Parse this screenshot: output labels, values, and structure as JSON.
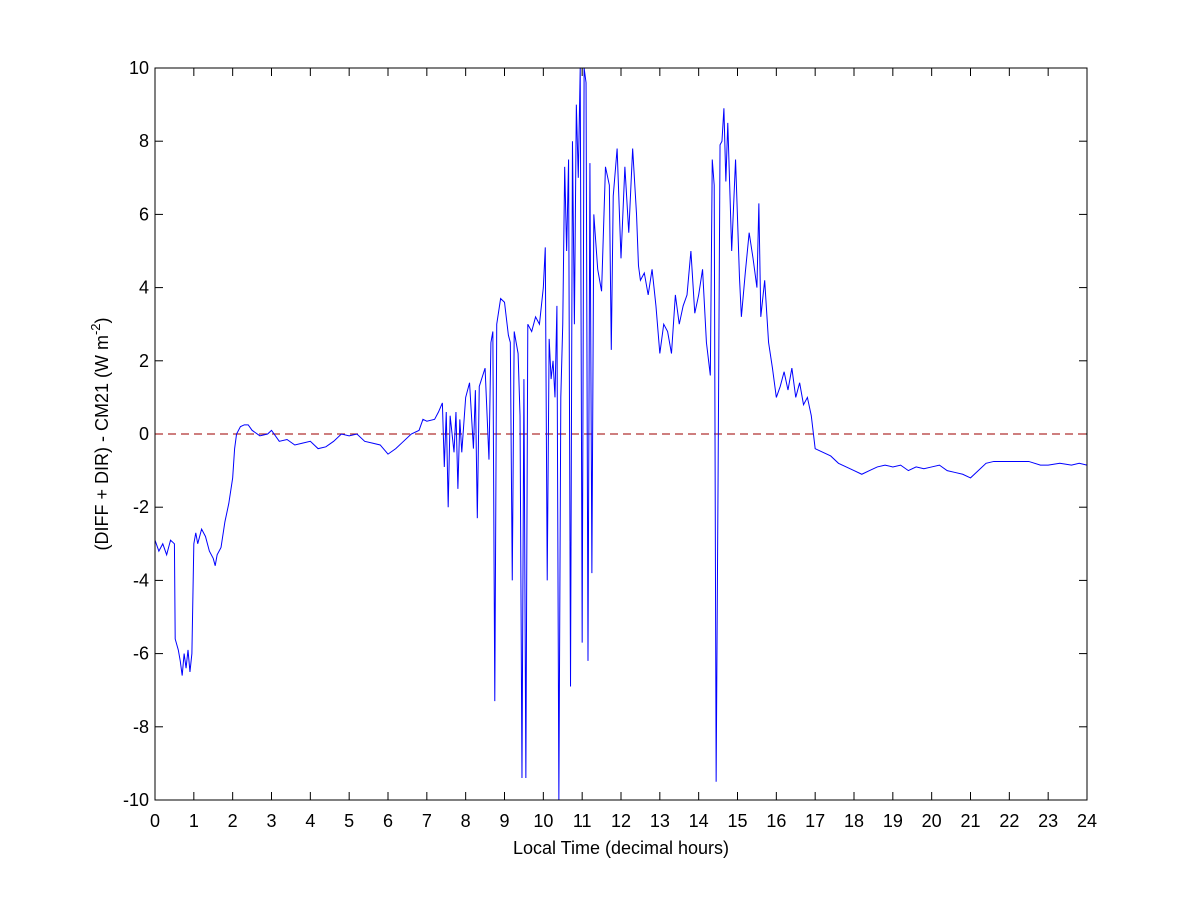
{
  "chart_data": {
    "type": "line",
    "xlabel": "Local Time (decimal hours)",
    "ylabel": {
      "text": "(DIFF + DIR) - CM21 (W m",
      "superscript": "-2",
      "suffix": ")"
    },
    "xlim": [
      0,
      24
    ],
    "xticks": [
      0,
      1,
      2,
      3,
      4,
      5,
      6,
      7,
      8,
      9,
      10,
      11,
      12,
      13,
      14,
      15,
      16,
      17,
      18,
      19,
      20,
      21,
      22,
      23,
      24
    ],
    "ylim": [
      -10,
      10
    ],
    "yticks": [
      -10,
      -8,
      -6,
      -4,
      -2,
      0,
      2,
      4,
      6,
      8,
      10
    ],
    "reference_line": {
      "value": 0,
      "color": "#b03030",
      "style": "dashed"
    },
    "series": [
      {
        "color": "#0000ff",
        "x": [
          0,
          0.1,
          0.2,
          0.3,
          0.4,
          0.5,
          0.52,
          0.6,
          0.65,
          0.7,
          0.75,
          0.8,
          0.85,
          0.9,
          0.95,
          1.0,
          1.05,
          1.1,
          1.2,
          1.3,
          1.4,
          1.5,
          1.55,
          1.6,
          1.7,
          1.8,
          1.9,
          2.0,
          2.05,
          2.1,
          2.2,
          2.3,
          2.4,
          2.5,
          2.7,
          2.9,
          3.0,
          3.2,
          3.4,
          3.6,
          3.8,
          4.0,
          4.2,
          4.4,
          4.6,
          4.8,
          5.0,
          5.2,
          5.4,
          5.6,
          5.8,
          6.0,
          6.2,
          6.4,
          6.6,
          6.8,
          6.9,
          7.0,
          7.2,
          7.3,
          7.4,
          7.45,
          7.5,
          7.55,
          7.6,
          7.7,
          7.75,
          7.8,
          7.85,
          7.9,
          8.0,
          8.1,
          8.2,
          8.25,
          8.3,
          8.35,
          8.5,
          8.6,
          8.65,
          8.7,
          8.75,
          8.8,
          8.9,
          9.0,
          9.1,
          9.15,
          9.2,
          9.25,
          9.35,
          9.4,
          9.45,
          9.5,
          9.55,
          9.6,
          9.7,
          9.8,
          9.9,
          10.0,
          10.05,
          10.1,
          10.15,
          10.2,
          10.25,
          10.3,
          10.35,
          10.4,
          10.45,
          10.5,
          10.55,
          10.6,
          10.65,
          10.7,
          10.75,
          10.8,
          10.85,
          10.9,
          10.95,
          11.0,
          11.05,
          11.1,
          11.15,
          11.2,
          11.25,
          11.3,
          11.4,
          11.5,
          11.6,
          11.7,
          11.75,
          11.8,
          11.9,
          12.0,
          12.1,
          12.2,
          12.3,
          12.4,
          12.45,
          12.5,
          12.6,
          12.7,
          12.8,
          12.9,
          13.0,
          13.1,
          13.2,
          13.3,
          13.4,
          13.5,
          13.6,
          13.7,
          13.8,
          13.9,
          14.0,
          14.1,
          14.2,
          14.3,
          14.35,
          14.4,
          14.45,
          14.5,
          14.55,
          14.6,
          14.65,
          14.7,
          14.75,
          14.85,
          14.95,
          15.05,
          15.1,
          15.2,
          15.3,
          15.4,
          15.5,
          15.55,
          15.6,
          15.7,
          15.8,
          15.9,
          16.0,
          16.1,
          16.2,
          16.3,
          16.4,
          16.5,
          16.6,
          16.7,
          16.8,
          16.9,
          17.0,
          17.2,
          17.4,
          17.6,
          17.8,
          18.0,
          18.2,
          18.4,
          18.6,
          18.8,
          19.0,
          19.2,
          19.4,
          19.6,
          19.8,
          20.0,
          20.2,
          20.4,
          20.6,
          20.8,
          21.0,
          21.2,
          21.4,
          21.6,
          21.8,
          22.0,
          22.5,
          22.8,
          23.0,
          23.3,
          23.6,
          23.8,
          24.0
        ],
        "values": [
          -2.9,
          -3.2,
          -3.0,
          -3.3,
          -2.9,
          -3.0,
          -5.6,
          -5.9,
          -6.2,
          -6.6,
          -6.0,
          -6.4,
          -5.9,
          -6.5,
          -6.0,
          -3.0,
          -2.7,
          -3.0,
          -2.6,
          -2.8,
          -3.2,
          -3.4,
          -3.6,
          -3.3,
          -3.1,
          -2.4,
          -1.9,
          -1.2,
          -0.4,
          0.0,
          0.2,
          0.25,
          0.25,
          0.1,
          -0.05,
          0.0,
          0.1,
          -0.2,
          -0.15,
          -0.3,
          -0.25,
          -0.2,
          -0.4,
          -0.35,
          -0.2,
          0.0,
          -0.05,
          0.0,
          -0.2,
          -0.25,
          -0.3,
          -0.55,
          -0.4,
          -0.2,
          0.0,
          0.1,
          0.4,
          0.35,
          0.4,
          0.6,
          0.85,
          -0.9,
          0.6,
          -2.0,
          0.5,
          -0.5,
          0.6,
          -1.5,
          0.4,
          -0.5,
          1.0,
          1.4,
          -0.4,
          1.2,
          -2.3,
          1.3,
          1.8,
          -0.7,
          2.5,
          2.8,
          -7.3,
          3.0,
          3.7,
          3.6,
          2.7,
          2.5,
          -4.0,
          2.8,
          2.2,
          0.5,
          -9.4,
          1.5,
          -9.4,
          3.0,
          2.8,
          3.2,
          3.0,
          4.0,
          5.1,
          -4.0,
          2.6,
          1.5,
          2.0,
          1.0,
          3.5,
          -10,
          1.0,
          3.0,
          7.3,
          5.0,
          7.5,
          -6.9,
          8.0,
          3.0,
          9.0,
          7.0,
          10,
          -5.7,
          10,
          9.6,
          -6.2,
          7.4,
          -3.8,
          6.0,
          4.5,
          3.9,
          7.3,
          6.8,
          2.3,
          6.5,
          7.8,
          4.8,
          7.3,
          5.5,
          7.8,
          6.0,
          4.6,
          4.2,
          4.4,
          3.8,
          4.5,
          3.5,
          2.2,
          3.0,
          2.8,
          2.2,
          3.8,
          3.0,
          3.5,
          3.8,
          5.0,
          3.3,
          3.8,
          4.5,
          2.5,
          1.6,
          7.5,
          6.8,
          -9.5,
          -1.2,
          7.9,
          8.0,
          8.9,
          6.9,
          8.5,
          5.0,
          7.5,
          4.3,
          3.2,
          4.4,
          5.5,
          4.8,
          4.0,
          6.3,
          3.2,
          4.2,
          2.5,
          1.8,
          1.0,
          1.3,
          1.7,
          1.2,
          1.8,
          1.0,
          1.4,
          0.8,
          1.0,
          0.5,
          -0.4,
          -0.5,
          -0.6,
          -0.8,
          -0.9,
          -1.0,
          -1.1,
          -1.0,
          -0.9,
          -0.85,
          -0.9,
          -0.85,
          -1.0,
          -0.9,
          -0.95,
          -0.9,
          -0.85,
          -1.0,
          -1.05,
          -1.1,
          -1.2,
          -1.0,
          -0.8,
          -0.75,
          -0.75,
          -0.75,
          -0.75,
          -0.85,
          -0.85,
          -0.8,
          -0.85,
          -0.8,
          -0.85
        ]
      }
    ]
  }
}
